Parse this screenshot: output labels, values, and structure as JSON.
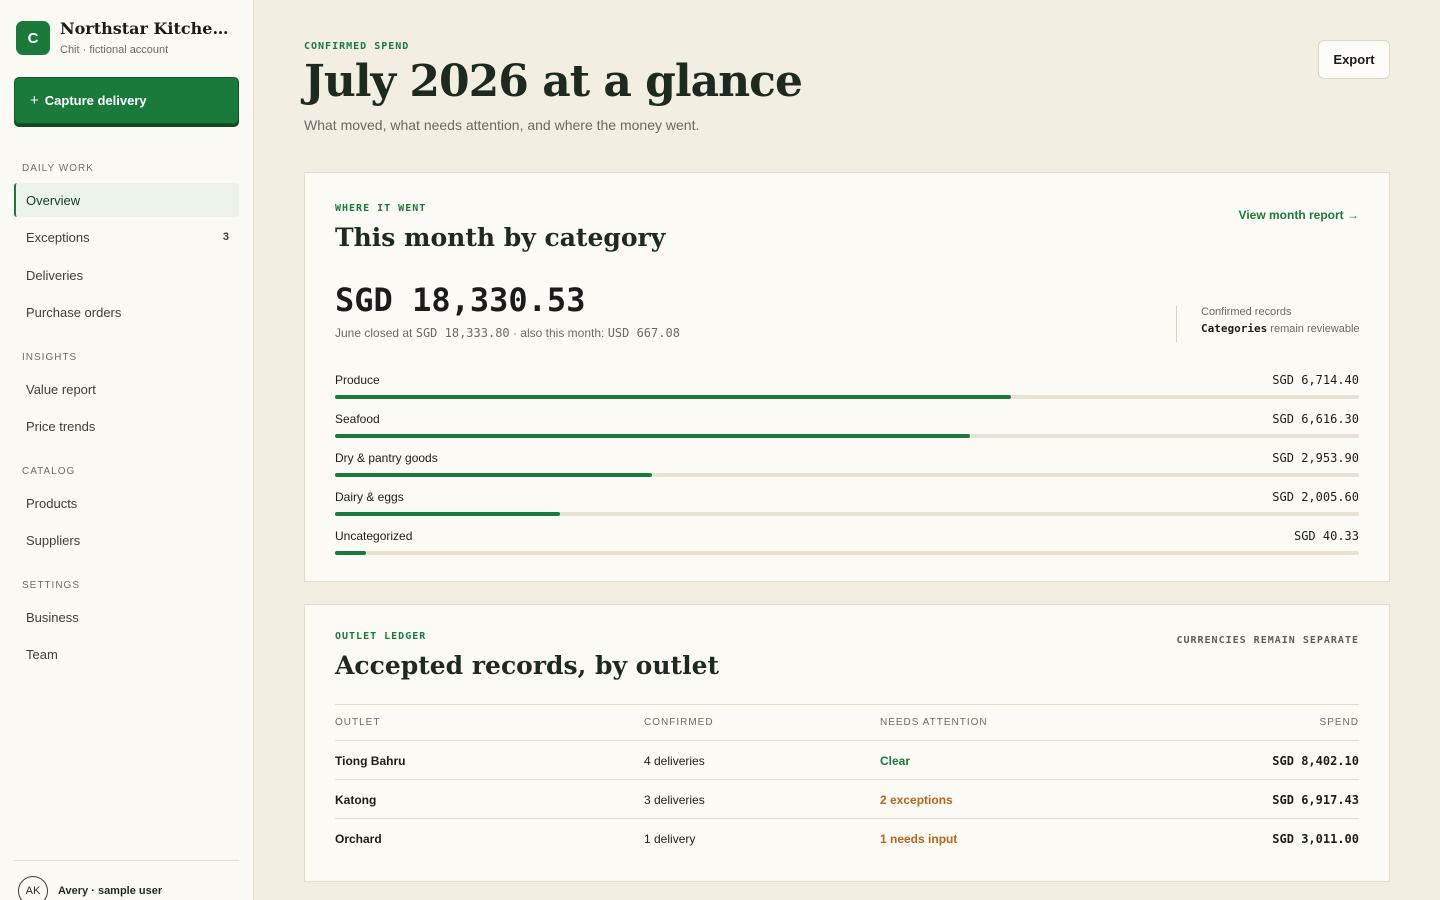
{
  "sidebar": {
    "brand": {
      "logo_letter": "C",
      "name": "Northstar Kitchen Group",
      "subtitle": "Chit · fictional account"
    },
    "capture_button": {
      "icon": "plus-icon",
      "label": "Capture delivery"
    },
    "sections": [
      {
        "title": "DAILY WORK",
        "items": [
          {
            "label": "Overview",
            "active": true
          },
          {
            "label": "Exceptions",
            "badge": "3"
          },
          {
            "label": "Deliveries"
          },
          {
            "label": "Purchase orders"
          }
        ]
      },
      {
        "title": "INSIGHTS",
        "items": [
          {
            "label": "Value report"
          },
          {
            "label": "Price trends"
          }
        ]
      },
      {
        "title": "CATALOG",
        "items": [
          {
            "label": "Products"
          },
          {
            "label": "Suppliers"
          }
        ]
      },
      {
        "title": "SETTINGS",
        "items": [
          {
            "label": "Business"
          },
          {
            "label": "Team"
          }
        ]
      }
    ],
    "user": {
      "initials": "AK",
      "name": "Avery · sample user"
    }
  },
  "header": {
    "eyebrow": "CONFIRMED SPEND",
    "title": "July 2026 at a glance",
    "subtitle": "What moved, what needs attention, and where the money went.",
    "export_label": "Export"
  },
  "category_card": {
    "eyebrow": "WHERE IT WENT",
    "title": "This month by category",
    "link": "View month report →",
    "total": "SGD 18,330.53",
    "total_sub_prefix": "June closed at ",
    "total_sub_june": "SGD 18,333.80",
    "total_sub_mid": " · also this month: ",
    "total_sub_usd": "USD 667.08",
    "note_line1": "Confirmed records",
    "note_bold": "Categories",
    "note_rest": " remain reviewable",
    "categories": [
      {
        "label": "Produce",
        "value": "SGD 6,714.40",
        "share": 0.66
      },
      {
        "label": "Seafood",
        "value": "SGD 6,616.30",
        "share": 0.62
      },
      {
        "label": "Dry & pantry goods",
        "value": "SGD 2,953.90",
        "share": 0.31
      },
      {
        "label": "Dairy & eggs",
        "value": "SGD 2,005.60",
        "share": 0.22
      },
      {
        "label": "Uncategorized",
        "value": "SGD 40.33",
        "share": 0.03
      }
    ]
  },
  "outlet_card": {
    "eyebrow": "OUTLET LEDGER",
    "title": "Accepted records, by outlet",
    "currency_note": "CURRENCIES REMAIN SEPARATE",
    "columns": [
      "OUTLET",
      "CONFIRMED",
      "NEEDS ATTENTION",
      "SPEND"
    ],
    "rows": [
      {
        "outlet": "Tiong Bahru",
        "confirmed": "4 deliveries",
        "attention": "Clear",
        "attention_color": "#1a7a3c",
        "spend": "SGD 8,402.10"
      },
      {
        "outlet": "Katong",
        "confirmed": "3 deliveries",
        "attention": "2 exceptions",
        "attention_color": "#b5651d",
        "spend": "SGD 6,917.43"
      },
      {
        "outlet": "Orchard",
        "confirmed": "1 delivery",
        "attention": "1 needs input",
        "attention_color": "#b5651d",
        "spend": "SGD 3,011.00"
      }
    ]
  }
}
